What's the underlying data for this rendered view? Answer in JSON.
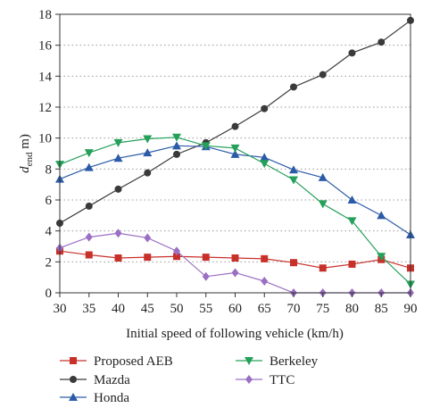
{
  "chart_data": {
    "type": "line",
    "xlabel": "Initial speed of following vehicle (km/h)",
    "ylabel": {
      "base": "d",
      "sub": "end",
      "unit": " m)"
    },
    "x": [
      30,
      35,
      40,
      45,
      50,
      55,
      60,
      65,
      70,
      75,
      80,
      85,
      90
    ],
    "xlim": [
      30,
      90
    ],
    "ylim": [
      0,
      18
    ],
    "xticks": [
      "30",
      "35",
      "40",
      "45",
      "50",
      "55",
      "60",
      "65",
      "70",
      "75",
      "80",
      "85",
      "90"
    ],
    "yticks": [
      "0",
      "2",
      "4",
      "6",
      "8",
      "10",
      "12",
      "14",
      "16",
      "18"
    ],
    "grid": "dotted-horizontal",
    "legend_position": "bottom",
    "series": [
      {
        "name": "Proposed AEB",
        "color": "#c8302a",
        "marker": "square",
        "values": [
          2.7,
          2.45,
          2.25,
          2.3,
          2.35,
          2.3,
          2.25,
          2.2,
          1.95,
          1.6,
          1.85,
          2.15,
          1.6
        ]
      },
      {
        "name": "Mazda",
        "color": "#3a3a3a",
        "marker": "circle",
        "values": [
          4.5,
          5.6,
          6.7,
          7.75,
          8.95,
          9.7,
          10.75,
          11.9,
          13.3,
          14.1,
          15.5,
          16.2,
          17.6
        ]
      },
      {
        "name": "Honda",
        "color": "#2b5ba8",
        "marker": "triangle-up",
        "values": [
          7.35,
          8.1,
          8.7,
          9.05,
          9.5,
          9.45,
          8.95,
          8.75,
          7.95,
          7.45,
          6.0,
          5.0,
          3.75
        ]
      },
      {
        "name": "Berkeley",
        "color": "#25a05a",
        "marker": "triangle-down",
        "values": [
          8.3,
          9.05,
          9.7,
          9.95,
          10.05,
          9.5,
          9.35,
          8.35,
          7.3,
          5.75,
          4.65,
          2.35,
          0.55
        ]
      },
      {
        "name": "TTC",
        "color": "#9a6fc4",
        "marker": "diamond",
        "values": [
          2.9,
          3.6,
          3.85,
          3.55,
          2.7,
          1.05,
          1.3,
          0.75,
          0.0,
          0.0,
          0.0,
          0.0,
          0.0
        ]
      }
    ]
  }
}
